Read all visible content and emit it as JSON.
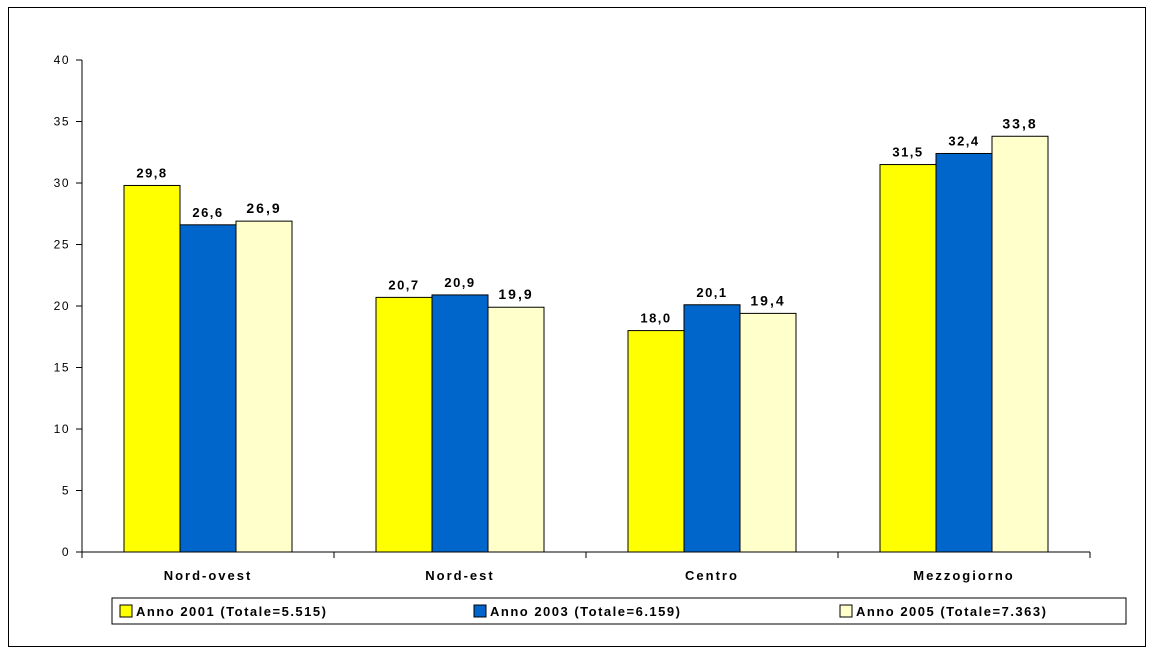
{
  "chart_data": {
    "type": "bar",
    "categories": [
      "Nord-ovest",
      "Nord-est",
      "Centro",
      "Mezzogiorno"
    ],
    "series": [
      {
        "name": "Anno 2001 (Totale=5.515)",
        "values": [
          29.8,
          20.7,
          18.0,
          31.5
        ],
        "labels": [
          "29,8",
          "20,7",
          "18,0",
          "31,5"
        ],
        "color": "#FFFF00"
      },
      {
        "name": "Anno 2003 (Totale=6.159)",
        "values": [
          26.6,
          20.9,
          20.1,
          32.4
        ],
        "labels": [
          "26,6",
          "20,9",
          "20,1",
          "32,4"
        ],
        "color": "#0066CC"
      },
      {
        "name": "Anno 2005 (Totale=7.363)",
        "values": [
          26.9,
          19.9,
          19.4,
          33.8
        ],
        "labels": [
          "26,9",
          "19,9",
          "19,4",
          "33,8"
        ],
        "color": "#FFFFCC"
      }
    ],
    "yticks": [
      "0",
      "5",
      "10",
      "15",
      "20",
      "25",
      "30",
      "35",
      "40"
    ],
    "ylim": [
      0,
      40
    ],
    "grid": false,
    "legend_position": "bottom"
  }
}
